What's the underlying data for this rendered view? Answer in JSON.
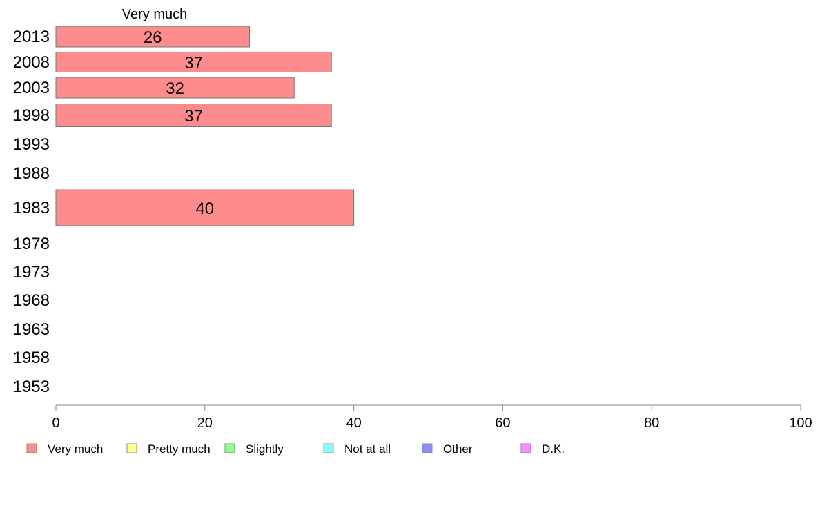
{
  "chart_data": {
    "type": "bar",
    "orientation": "horizontal",
    "categories": [
      "2013",
      "2008",
      "2003",
      "1998",
      "1993",
      "1988",
      "1983",
      "1978",
      "1973",
      "1968",
      "1963",
      "1958",
      "1953"
    ],
    "series": [
      {
        "name": "Very much",
        "values": [
          26,
          37,
          32,
          37,
          null,
          null,
          40,
          null,
          null,
          null,
          null,
          null,
          null
        ]
      },
      {
        "name": "Pretty much",
        "values": [
          null,
          null,
          null,
          null,
          null,
          null,
          null,
          null,
          null,
          null,
          null,
          null,
          null
        ]
      },
      {
        "name": "Slightly",
        "values": [
          null,
          null,
          null,
          null,
          null,
          null,
          null,
          null,
          null,
          null,
          null,
          null,
          null
        ]
      },
      {
        "name": "Not at all",
        "values": [
          null,
          null,
          null,
          null,
          null,
          null,
          null,
          null,
          null,
          null,
          null,
          null,
          null
        ]
      },
      {
        "name": "Other",
        "values": [
          null,
          null,
          null,
          null,
          null,
          null,
          null,
          null,
          null,
          null,
          null,
          null,
          null
        ]
      },
      {
        "name": "D.K.",
        "values": [
          null,
          null,
          null,
          null,
          null,
          null,
          null,
          null,
          null,
          null,
          null,
          null,
          null
        ]
      }
    ],
    "column_header": "Very much",
    "xlim": [
      0,
      100
    ],
    "xticks": [
      0,
      20,
      40,
      60,
      80,
      100
    ],
    "grid": false,
    "legend_position": "bottom",
    "colors": {
      "Very much": "#ff8c8c",
      "Pretty much": "#ffff8c",
      "Slightly": "#8cff8c",
      "Not at all": "#8cffff",
      "Other": "#8c8cff",
      "D.K.": "#ff8cff"
    }
  }
}
